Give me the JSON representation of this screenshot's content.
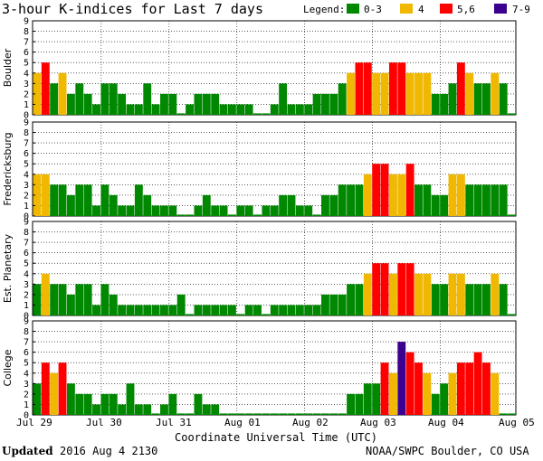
{
  "title": "3-hour K-indices for Last 7 days",
  "legend": {
    "label": "Legend:",
    "items": [
      {
        "label": "0-3",
        "color": "#008800"
      },
      {
        "label": "4",
        "color": "#f0b800"
      },
      {
        "label": "5,6",
        "color": "#ff0000"
      },
      {
        "label": "7-9",
        "color": "#3c0090"
      }
    ]
  },
  "x_ticks": [
    "Jul 29",
    "Jul 30",
    "Jul 31",
    "Aug 01",
    "Aug 02",
    "Aug 03",
    "Aug 04",
    "Aug 05"
  ],
  "xlabel": "Coordinate Universal Time (UTC)",
  "footer": {
    "updated_label": "Updated",
    "updated_value": "2016 Aug  4 2130",
    "source": "NOAA/SWPC Boulder, CO USA"
  },
  "chart_data": [
    {
      "type": "bar",
      "title": "Boulder",
      "ylim": [
        0,
        9
      ],
      "yticks": [
        "0",
        "1",
        "2",
        "3",
        "4",
        "5",
        "6",
        "7",
        "8",
        "9"
      ],
      "values": [
        4,
        5,
        3,
        4,
        2,
        3,
        2,
        1,
        3,
        3,
        2,
        1,
        1,
        3,
        1,
        2,
        2,
        0,
        1,
        2,
        2,
        2,
        1,
        1,
        1,
        1,
        0,
        0,
        1,
        3,
        1,
        1,
        1,
        2,
        2,
        2,
        3,
        4,
        5,
        5,
        4,
        4,
        5,
        5,
        4,
        4,
        4,
        2,
        2,
        3,
        5,
        4,
        3,
        3,
        4,
        3,
        0
      ]
    },
    {
      "type": "bar",
      "title": "Fredericksburg",
      "ylim": [
        0,
        9
      ],
      "yticks": [
        "0",
        "1",
        "2",
        "3",
        "4",
        "5",
        "6",
        "7",
        "8",
        "9"
      ],
      "values": [
        4,
        4,
        3,
        3,
        2,
        3,
        3,
        1,
        3,
        2,
        1,
        1,
        3,
        2,
        1,
        1,
        1,
        0,
        0,
        1,
        2,
        1,
        1,
        0,
        1,
        1,
        0,
        1,
        1,
        2,
        2,
        1,
        1,
        0,
        2,
        2,
        3,
        3,
        3,
        4,
        5,
        5,
        4,
        4,
        5,
        3,
        3,
        2,
        2,
        4,
        4,
        3,
        3,
        3,
        3,
        3,
        0
      ]
    },
    {
      "type": "bar",
      "title": "Est. Planetary",
      "ylim": [
        0,
        9
      ],
      "yticks": [
        "0",
        "1",
        "2",
        "3",
        "4",
        "5",
        "6",
        "7",
        "8",
        "9"
      ],
      "values": [
        3,
        4,
        3,
        3,
        2,
        3,
        3,
        1,
        3,
        2,
        1,
        1,
        1,
        1,
        1,
        1,
        1,
        2,
        0,
        1,
        1,
        1,
        1,
        1,
        0,
        1,
        1,
        0,
        1,
        1,
        1,
        1,
        1,
        1,
        2,
        2,
        2,
        3,
        3,
        4,
        5,
        5,
        4,
        5,
        5,
        4,
        4,
        3,
        3,
        4,
        4,
        3,
        3,
        3,
        4,
        3,
        0
      ]
    },
    {
      "type": "bar",
      "title": "College",
      "ylim": [
        0,
        9
      ],
      "yticks": [
        "0",
        "1",
        "2",
        "3",
        "4",
        "5",
        "6",
        "7",
        "8",
        "9"
      ],
      "values": [
        3,
        5,
        4,
        5,
        3,
        2,
        2,
        1,
        2,
        2,
        1,
        3,
        1,
        1,
        0,
        1,
        2,
        0,
        0,
        2,
        1,
        1,
        0,
        0,
        0,
        0,
        0,
        0,
        0,
        0,
        0,
        0,
        0,
        0,
        0,
        0,
        0,
        2,
        2,
        3,
        3,
        5,
        4,
        7,
        6,
        5,
        4,
        2,
        3,
        4,
        5,
        5,
        6,
        5,
        4,
        0,
        0
      ]
    }
  ]
}
